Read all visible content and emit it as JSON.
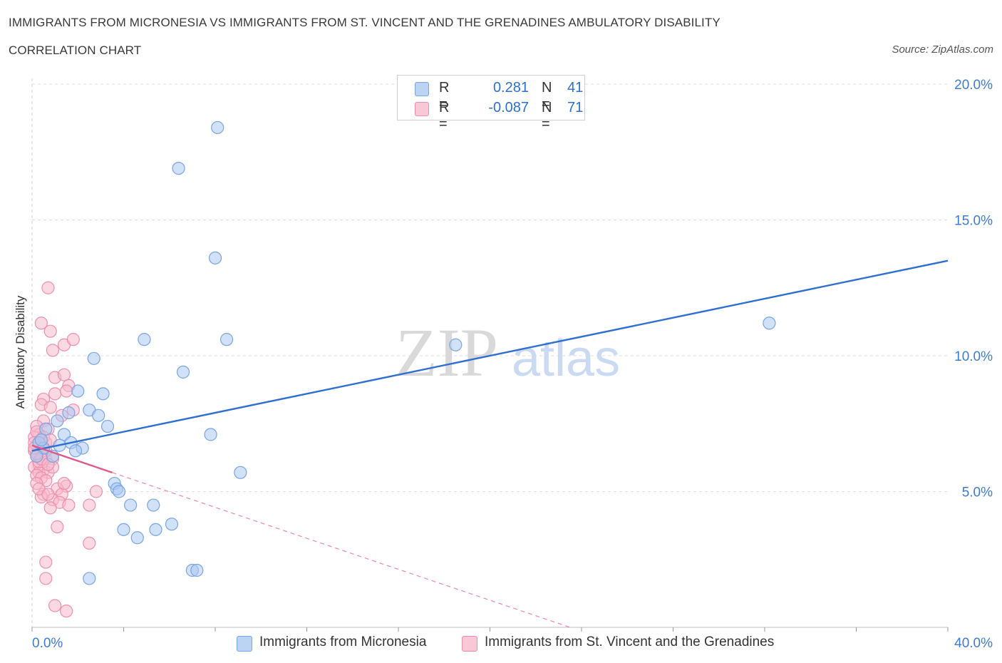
{
  "title_line1": "IMMIGRANTS FROM MICRONESIA VS IMMIGRANTS FROM ST. VINCENT AND THE GRENADINES AMBULATORY DISABILITY",
  "title_line2": "CORRELATION CHART",
  "source": "Source: ZipAtlas.com",
  "watermark": {
    "zip": "ZIP",
    "atlas": "atlas"
  },
  "colors": {
    "blue_fill": "#a9c8f2",
    "blue_stroke": "#7aa5e0",
    "blue_line": "#2f6fcf",
    "pink_fill": "#f7b9cc",
    "pink_stroke": "#ec8fae",
    "pink_line": "#e0588a",
    "grid": "#dcdcdc",
    "tick_label": "#3f7bd0"
  },
  "legend": {
    "series": [
      {
        "r_label": "R =",
        "r_value": "0.281",
        "n_label": "N =",
        "n_value": "41"
      },
      {
        "r_label": "R =",
        "r_value": "-0.087",
        "n_label": "N =",
        "n_value": "71"
      }
    ]
  },
  "chart_data": {
    "type": "scatter",
    "title": "IMMIGRANTS FROM MICRONESIA VS IMMIGRANTS FROM ST. VINCENT AND THE GRENADINES AMBULATORY DISABILITY CORRELATION CHART",
    "xlabel": "",
    "ylabel": "Ambulatory Disability",
    "xlim": [
      0,
      40
    ],
    "ylim": [
      0,
      20
    ],
    "x_tick_labels": [
      "0.0%",
      "40.0%"
    ],
    "y_ticks": [
      5,
      10,
      15,
      20
    ],
    "y_tick_labels": [
      "5.0%",
      "10.0%",
      "15.0%",
      "20.0%"
    ],
    "grid": true,
    "legend_position": "bottom",
    "series": [
      {
        "name": "Immigrants from Micronesia",
        "color": "#7aa5e0",
        "trend": {
          "x": [
            0,
            40
          ],
          "y": [
            6.5,
            13.5
          ],
          "style": "solid"
        },
        "points": [
          [
            8.1,
            18.4
          ],
          [
            6.4,
            16.9
          ],
          [
            8.0,
            13.6
          ],
          [
            32.2,
            11.2
          ],
          [
            18.5,
            10.4
          ],
          [
            4.9,
            10.6
          ],
          [
            8.5,
            10.6
          ],
          [
            2.7,
            9.9
          ],
          [
            6.6,
            9.4
          ],
          [
            2.0,
            8.7
          ],
          [
            3.1,
            8.6
          ],
          [
            2.5,
            8.0
          ],
          [
            1.6,
            7.9
          ],
          [
            2.9,
            7.8
          ],
          [
            1.1,
            7.6
          ],
          [
            3.3,
            7.4
          ],
          [
            0.6,
            7.3
          ],
          [
            1.4,
            7.1
          ],
          [
            7.8,
            7.1
          ],
          [
            0.3,
            6.8
          ],
          [
            1.7,
            6.8
          ],
          [
            0.5,
            6.6
          ],
          [
            2.2,
            6.6
          ],
          [
            1.9,
            6.5
          ],
          [
            0.9,
            6.3
          ],
          [
            0.2,
            6.3
          ],
          [
            9.1,
            5.7
          ],
          [
            3.6,
            5.3
          ],
          [
            3.7,
            5.1
          ],
          [
            3.8,
            5.0
          ],
          [
            4.3,
            4.5
          ],
          [
            5.3,
            4.5
          ],
          [
            6.1,
            3.8
          ],
          [
            4.0,
            3.6
          ],
          [
            5.4,
            3.6
          ],
          [
            4.6,
            3.3
          ],
          [
            7.0,
            2.1
          ],
          [
            7.2,
            2.1
          ],
          [
            2.5,
            1.8
          ],
          [
            0.4,
            6.9
          ],
          [
            1.2,
            6.7
          ]
        ]
      },
      {
        "name": "Immigrants from St. Vincent and the Grenadines",
        "color": "#ec8fae",
        "trend": {
          "x": [
            0,
            3.5
          ],
          "y": [
            6.7,
            5.7
          ],
          "style": "solid",
          "extension": {
            "x": [
              3.5,
              40
            ],
            "y": [
              5.7,
              -4.7
            ],
            "style": "dashed"
          }
        },
        "points": [
          [
            0.7,
            12.5
          ],
          [
            0.4,
            11.2
          ],
          [
            0.8,
            10.9
          ],
          [
            1.4,
            10.4
          ],
          [
            1.8,
            10.6
          ],
          [
            0.9,
            10.2
          ],
          [
            1.0,
            9.2
          ],
          [
            1.4,
            9.3
          ],
          [
            1.6,
            8.9
          ],
          [
            1.0,
            8.6
          ],
          [
            1.5,
            8.7
          ],
          [
            0.5,
            8.4
          ],
          [
            0.4,
            8.2
          ],
          [
            0.8,
            8.1
          ],
          [
            1.8,
            8.0
          ],
          [
            1.3,
            7.8
          ],
          [
            0.5,
            7.6
          ],
          [
            0.2,
            7.4
          ],
          [
            0.7,
            7.3
          ],
          [
            0.3,
            7.1
          ],
          [
            0.1,
            7.0
          ],
          [
            0.4,
            6.9
          ],
          [
            0.6,
            6.8
          ],
          [
            0.2,
            6.7
          ],
          [
            0.3,
            6.6
          ],
          [
            0.5,
            6.6
          ],
          [
            0.1,
            6.5
          ],
          [
            0.4,
            6.4
          ],
          [
            0.2,
            6.3
          ],
          [
            0.6,
            6.2
          ],
          [
            0.9,
            6.2
          ],
          [
            0.3,
            6.0
          ],
          [
            0.1,
            5.9
          ],
          [
            0.5,
            5.8
          ],
          [
            0.3,
            5.7
          ],
          [
            0.7,
            5.7
          ],
          [
            0.2,
            5.6
          ],
          [
            0.4,
            5.5
          ],
          [
            0.6,
            5.4
          ],
          [
            1.5,
            5.2
          ],
          [
            1.1,
            5.1
          ],
          [
            2.8,
            5.0
          ],
          [
            0.5,
            4.9
          ],
          [
            1.3,
            4.9
          ],
          [
            0.4,
            4.8
          ],
          [
            0.9,
            4.7
          ],
          [
            1.2,
            4.6
          ],
          [
            1.6,
            4.5
          ],
          [
            2.5,
            4.5
          ],
          [
            0.8,
            4.4
          ],
          [
            1.1,
            3.7
          ],
          [
            2.5,
            3.1
          ],
          [
            0.6,
            2.4
          ],
          [
            0.6,
            1.8
          ],
          [
            1.0,
            0.8
          ],
          [
            1.5,
            0.6
          ],
          [
            0.2,
            7.2
          ],
          [
            0.3,
            6.1
          ],
          [
            0.1,
            6.8
          ],
          [
            0.5,
            7.0
          ],
          [
            0.8,
            6.9
          ],
          [
            0.2,
            5.3
          ],
          [
            0.6,
            6.5
          ],
          [
            0.9,
            5.9
          ],
          [
            0.4,
            6.2
          ],
          [
            0.3,
            5.1
          ],
          [
            1.4,
            5.3
          ],
          [
            0.7,
            4.9
          ],
          [
            0.2,
            6.4
          ],
          [
            0.1,
            6.6
          ],
          [
            0.7,
            6.0
          ]
        ]
      }
    ]
  }
}
